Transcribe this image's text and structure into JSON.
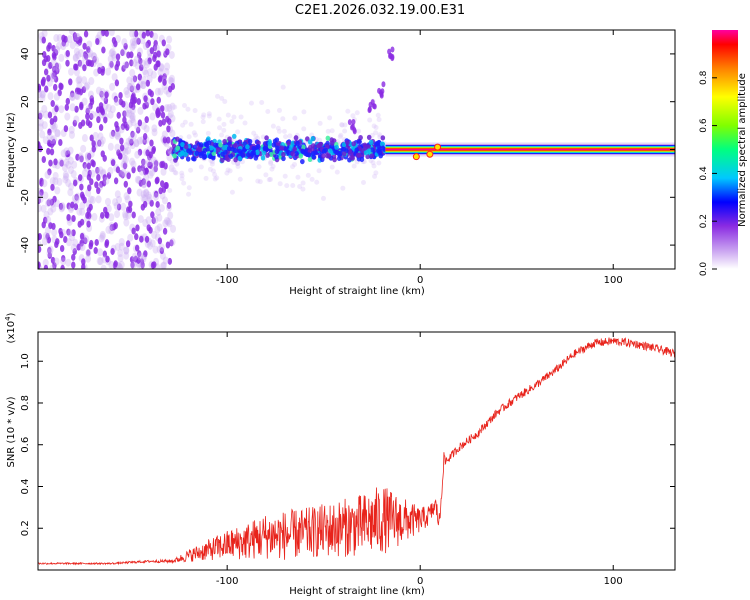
{
  "title": "C2E1.2026.032.19.00.E31",
  "colors": {
    "snr_line": "#e8231b",
    "noise_purple": "#8a2be2",
    "axis": "#000000",
    "frame": "#000000"
  },
  "chart_data": [
    {
      "type": "heatmap",
      "name": "spectrogram",
      "xlabel": "Height of straight line (km)",
      "ylabel": "Frequency (Hz)",
      "xlim": [
        -198,
        132
      ],
      "ylim": [
        -50,
        50
      ],
      "xticks": [
        -100,
        0,
        100
      ],
      "yticks": [
        -40,
        -20,
        0,
        20,
        40
      ],
      "xtick_labels": [
        "-100",
        "0",
        "100"
      ],
      "ytick_labels": [
        "-40",
        "-20",
        "0",
        "20",
        "40"
      ],
      "colorbar": {
        "label": "Normalized spectral amplitude",
        "range": [
          0,
          1
        ],
        "ticks": [
          0.0,
          0.2,
          0.4,
          0.6,
          0.8
        ],
        "tick_labels": [
          "0.0",
          "0.2",
          "0.4",
          "0.6",
          "0.8"
        ],
        "colormap": [
          "#ffffff",
          "#c8a0f0",
          "#8a2be2",
          "#0000ff",
          "#00c8ff",
          "#00ff80",
          "#80ff00",
          "#ffff00",
          "#ff8000",
          "#ff0000",
          "#ff00a0"
        ]
      },
      "regions": [
        {
          "label": "noise",
          "x_range": [
            -198,
            -128
          ],
          "freq_range": [
            -50,
            50
          ],
          "amplitude": 0.15
        },
        {
          "label": "scatter",
          "x_range": [
            -128,
            -18
          ],
          "freq_range": [
            -8,
            8
          ],
          "amplitude": 0.3
        },
        {
          "label": "echo_trace",
          "x_range": [
            -18,
            132
          ],
          "freq": 0,
          "amplitude": 0.95
        }
      ],
      "rising_streak": {
        "x": [
          -35,
          -25,
          -20,
          -15
        ],
        "freq": [
          10,
          18,
          25,
          40
        ]
      }
    },
    {
      "type": "line",
      "name": "snr",
      "xlabel": "Height of straight line (km)",
      "ylabel": "SNR (10 * v/v)",
      "y_multiplier_label": "(x10",
      "y_multiplier_exp": "4",
      "y_multiplier_close": ")",
      "xlim": [
        -198,
        132
      ],
      "ylim": [
        0,
        1.14
      ],
      "xticks": [
        -100,
        0,
        100
      ],
      "yticks": [
        0.2,
        0.4,
        0.6,
        0.8,
        1.0
      ],
      "xtick_labels": [
        "-100",
        "0",
        "100"
      ],
      "ytick_labels": [
        "0.2",
        "0.4",
        "0.6",
        "0.8",
        "1.0"
      ],
      "series": [
        {
          "name": "SNR",
          "x": [
            -198,
            -180,
            -160,
            -140,
            -128,
            -120,
            -110,
            -100,
            -90,
            -80,
            -70,
            -60,
            -50,
            -40,
            -30,
            -20,
            -10,
            0,
            5,
            8,
            10,
            12,
            15,
            20,
            30,
            40,
            50,
            60,
            70,
            80,
            90,
            100,
            110,
            120,
            132
          ],
          "y": [
            0.03,
            0.03,
            0.03,
            0.04,
            0.04,
            0.06,
            0.08,
            0.1,
            0.11,
            0.13,
            0.13,
            0.14,
            0.15,
            0.16,
            0.17,
            0.19,
            0.2,
            0.22,
            0.25,
            0.3,
            0.2,
            0.5,
            0.53,
            0.58,
            0.65,
            0.75,
            0.82,
            0.88,
            0.95,
            1.03,
            1.08,
            1.09,
            1.08,
            1.06,
            1.03
          ],
          "noise_amp": [
            0.004,
            0.004,
            0.004,
            0.006,
            0.008,
            0.03,
            0.05,
            0.07,
            0.09,
            0.11,
            0.12,
            0.12,
            0.13,
            0.14,
            0.15,
            0.17,
            0.12,
            0.06,
            0.05,
            0.04,
            0.06,
            0.05,
            0.02,
            0.02,
            0.02,
            0.02,
            0.02,
            0.02,
            0.02,
            0.02,
            0.02,
            0.02,
            0.02,
            0.02,
            0.02
          ]
        }
      ]
    }
  ]
}
